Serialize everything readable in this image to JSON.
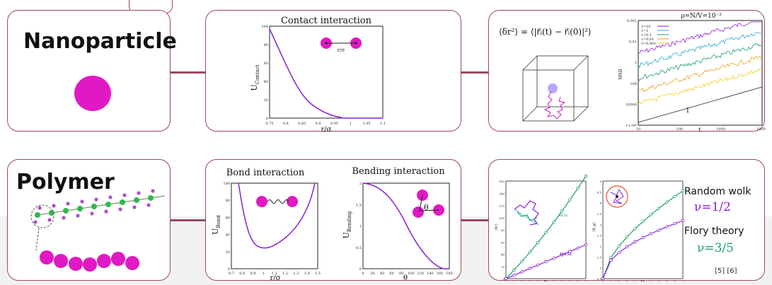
{
  "colors": {
    "border": "#9a4a5c",
    "magenta": "#e019c4",
    "purple": "#8a1fd6",
    "green": "#1f9e6d",
    "nu": "#1f9e6d",
    "band": "#f1f1f1"
  },
  "nanoparticle": {
    "title": "Nanoparticle"
  },
  "polymer": {
    "title": "Polymer"
  },
  "contact": {
    "title": "Contact interaction",
    "ylabel": "U",
    "ysub": "Contact",
    "xlabel": "r/σ",
    "inset": "r/σ",
    "xticks": [
      "0.75",
      "0.8",
      "0.85",
      "0.9",
      "0.95",
      "1",
      "1.05",
      "1.1"
    ],
    "yticks": [
      "0",
      "20",
      "40",
      "60",
      "80",
      "100"
    ]
  },
  "msd": {
    "formula": "⟨δr²⟩ = ⟨|r⃗ᵢ(t) − r⃗ᵢ(0)|²⟩",
    "title": "ρ=N/V=10⁻³",
    "ylabel": "MSD",
    "xlabel": "t",
    "yticks": [
      "1×10⁶",
      "10000",
      "100",
      "1",
      "0.01",
      "0.001"
    ],
    "xticks": [
      "10",
      "100",
      "1000",
      "10000"
    ],
    "legend": [
      "τ=10",
      "τ=1",
      "τ=0.1",
      "τ=0.01",
      "τ=0.001"
    ],
    "slope": "1"
  },
  "bond": {
    "title": "Bond interaction",
    "ylabel": "U",
    "ysub": "Bond",
    "xlabel": "r/σ",
    "xticks": [
      "0.7",
      "0.8",
      "0.9",
      "1",
      "1.1",
      "1.2",
      "1.3",
      "1.4",
      "1.5"
    ],
    "yticks": [
      "0",
      "20",
      "40",
      "60",
      "80",
      "100"
    ]
  },
  "bending": {
    "title": "Bending interaction",
    "ylabel": "U",
    "ysub": "Bending",
    "xlabel": "θ",
    "inset": "θ",
    "xticks": [
      "0",
      "20",
      "40",
      "60",
      "80",
      "100",
      "120",
      "140",
      "160",
      "180"
    ],
    "yticks": [
      "0",
      "0.5",
      "1",
      "1.5",
      "2"
    ]
  },
  "r2": {
    "ylabel": "⟨R²⟩",
    "xlabel": "N",
    "real": "REAL",
    "ideal": "IDEAL",
    "xticks": [
      "0",
      "5",
      "10",
      "15",
      "20",
      "25",
      "30",
      "35",
      "40",
      "45",
      "50"
    ],
    "yticks": [
      "0",
      "20",
      "40",
      "60",
      "80",
      "100",
      "120",
      "140",
      "160"
    ]
  },
  "rg": {
    "ylabel": "⟨R_g⟩",
    "xlabel": "N",
    "xticks": [
      "0",
      "5",
      "10",
      "15",
      "20",
      "25",
      "30",
      "35",
      "40",
      "45",
      "50"
    ],
    "yticks": [
      "0.5",
      "1",
      "1.5",
      "2",
      "2.5",
      "3",
      "3.5",
      "4",
      "4.5",
      "5"
    ]
  },
  "theory": {
    "random": "Random wolk",
    "nu1": "ν=1/2",
    "flory": "Flory theory",
    "nu2": "ν=3/5"
  },
  "refs": "[5] [6]"
}
